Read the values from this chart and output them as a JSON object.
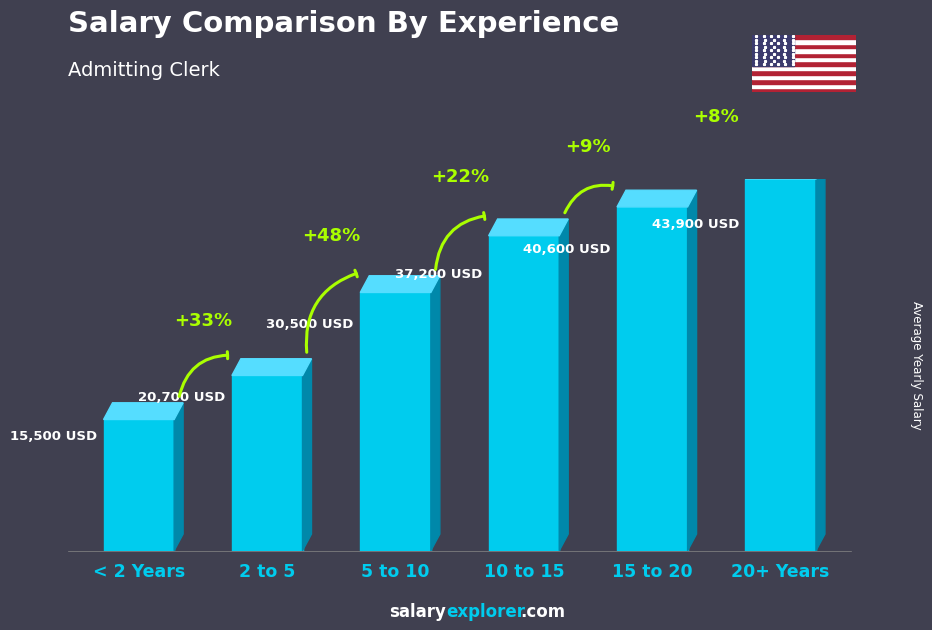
{
  "title": "Salary Comparison By Experience",
  "subtitle": "Admitting Clerk",
  "ylabel": "Average Yearly Salary",
  "footer_plain": "salary",
  "footer_accent": "explorer",
  "footer_end": ".com",
  "categories": [
    "< 2 Years",
    "2 to 5",
    "5 to 10",
    "10 to 15",
    "15 to 20",
    "20+ Years"
  ],
  "values": [
    15500,
    20700,
    30500,
    37200,
    40600,
    43900
  ],
  "labels": [
    "15,500 USD",
    "20,700 USD",
    "30,500 USD",
    "37,200 USD",
    "40,600 USD",
    "43,900 USD"
  ],
  "pct_changes": [
    "+33%",
    "+48%",
    "+22%",
    "+9%",
    "+8%"
  ],
  "bar_color_face": "#00CCEE",
  "bar_color_dark": "#0088AA",
  "bar_color_top": "#55DDFF",
  "bg_color": "#404050",
  "title_color": "#ffffff",
  "subtitle_color": "#ffffff",
  "label_color": "#ffffff",
  "pct_color": "#aaff00",
  "cat_color": "#00CCEE",
  "footer_plain_color": "#ffffff",
  "footer_accent_color": "#00CCEE"
}
